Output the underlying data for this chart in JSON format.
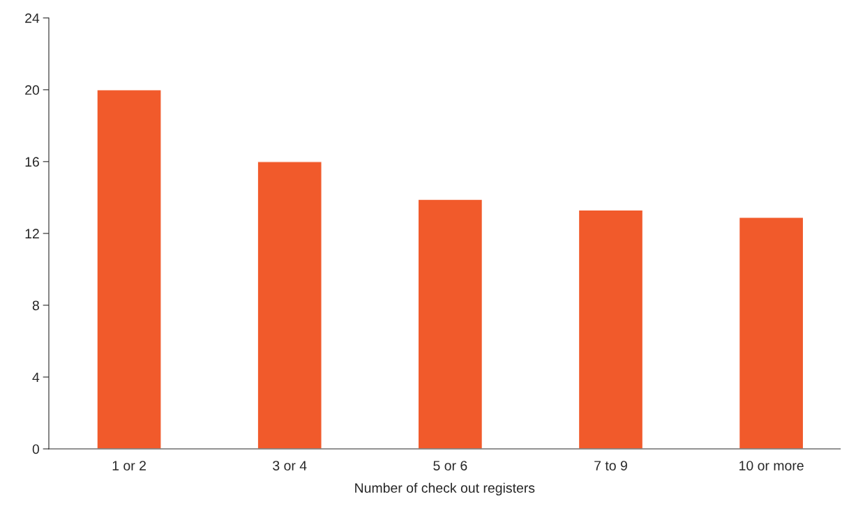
{
  "chart_data": {
    "type": "bar",
    "xlabel": "Number of check out registers",
    "categories": [
      "1 or 2",
      "3 or 4",
      "5 or 6",
      "7 to 9",
      "10 or more"
    ],
    "values": [
      20,
      16,
      13.9,
      13.3,
      12.9
    ],
    "color": "#f15a2b",
    "ylim": [
      0,
      24
    ],
    "yticks": [
      0,
      4,
      8,
      12,
      16,
      20,
      24
    ],
    "grid": false
  }
}
